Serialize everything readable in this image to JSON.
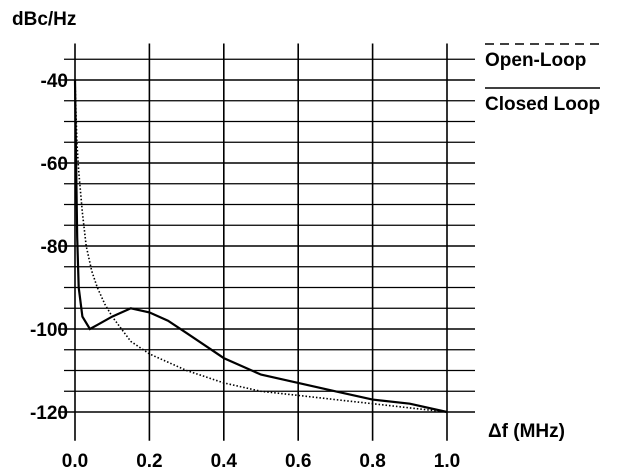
{
  "chart_data": {
    "type": "line",
    "y_axis_label": "dBc/Hz",
    "x_axis_label": "Δf (MHz)",
    "xlim": [
      0,
      1
    ],
    "xticks": [
      {
        "value": 0,
        "label": "0.0"
      },
      0.2,
      0.4,
      0.6,
      0.8,
      {
        "value": 1,
        "label": "1.0"
      }
    ],
    "ylim": [
      -125,
      -30
    ],
    "yticks": [
      -40,
      -60,
      -80,
      -100,
      -120
    ],
    "y_minor_grid": [
      -35,
      -45,
      -50,
      -55,
      -65,
      -70,
      -75,
      -85,
      -90,
      -95,
      -105,
      -110,
      -115
    ],
    "grid": true,
    "legend": "top-right",
    "series": [
      {
        "name": "Open-Loop",
        "color": "#000000",
        "dash": "dotted",
        "x": [
          0,
          0.005,
          0.01,
          0.02,
          0.03,
          0.045,
          0.06,
          0.08,
          0.1,
          0.15,
          0.2,
          0.3,
          0.4,
          0.5,
          0.6,
          0.7,
          0.8,
          0.9,
          1.0
        ],
        "values": [
          -40,
          -55,
          -62,
          -72,
          -80,
          -86,
          -90,
          -94,
          -97,
          -103,
          -106,
          -110,
          -113,
          -115,
          -116,
          -117,
          -118,
          -119,
          -120
        ]
      },
      {
        "name": "Closed Loop",
        "color": "#000000",
        "dash": "solid",
        "x": [
          0,
          0.003,
          0.006,
          0.01,
          0.02,
          0.04,
          0.06,
          0.1,
          0.15,
          0.2,
          0.25,
          0.3,
          0.35,
          0.4,
          0.5,
          0.6,
          0.7,
          0.8,
          0.9,
          1.0
        ],
        "values": [
          -40,
          -60,
          -78,
          -90,
          -97,
          -100,
          -99,
          -97,
          -95,
          -96,
          -98,
          -101,
          -104,
          -107,
          -111,
          -113,
          -115,
          -117,
          -118,
          -120
        ]
      }
    ]
  }
}
